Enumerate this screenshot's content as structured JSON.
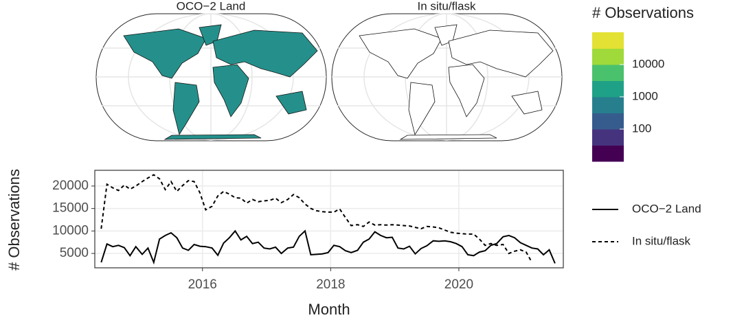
{
  "maps": [
    {
      "title": "OCO−2 Land"
    },
    {
      "title": "In situ/flask"
    }
  ],
  "colorbar": {
    "title": "# Observations",
    "log": true,
    "lim": [
      10,
      100000
    ],
    "ticks": [
      100,
      1000,
      10000
    ],
    "colors": [
      "#440154",
      "#46337e",
      "#365c8d",
      "#277f8e",
      "#1fa187",
      "#4ac16d",
      "#9fda3a",
      "#e3e134"
    ]
  },
  "chart_data": {
    "type": "line",
    "xlabel": "Month",
    "ylabel": "# Observations",
    "grid": true,
    "xlim": [
      2014.32,
      2021.63
    ],
    "xticks": [
      2016,
      2018,
      2020
    ],
    "ylim": [
      1800,
      23500
    ],
    "yticks": [
      5000,
      10000,
      15000,
      20000
    ],
    "x": [
      2014.42,
      2014.51,
      2014.6,
      2014.69,
      2014.78,
      2014.87,
      2014.96,
      2015.06,
      2015.15,
      2015.24,
      2015.33,
      2015.42,
      2015.51,
      2015.6,
      2015.69,
      2015.78,
      2015.87,
      2015.96,
      2016.05,
      2016.15,
      2016.24,
      2016.33,
      2016.42,
      2016.51,
      2016.6,
      2016.69,
      2016.78,
      2016.87,
      2016.96,
      2017.05,
      2017.14,
      2017.23,
      2017.33,
      2017.42,
      2017.51,
      2017.6,
      2017.69,
      2017.78,
      2017.87,
      2017.96,
      2018.05,
      2018.14,
      2018.23,
      2018.32,
      2018.42,
      2018.51,
      2018.6,
      2018.69,
      2018.78,
      2018.87,
      2018.96,
      2019.05,
      2019.14,
      2019.23,
      2019.32,
      2019.41,
      2019.5,
      2019.6,
      2019.69,
      2019.78,
      2019.87,
      2019.96,
      2020.05,
      2020.14,
      2020.23,
      2020.32,
      2020.41,
      2020.5,
      2020.59,
      2020.69,
      2020.78,
      2020.87,
      2020.96,
      2021.05,
      2021.14,
      2021.23,
      2021.32,
      2021.41,
      2021.5
    ],
    "series": [
      {
        "name": "OCO−2 Land",
        "color": "#000000",
        "linestyle": "solid",
        "values": [
          3000,
          7100,
          6500,
          6800,
          6300,
          4500,
          6500,
          4800,
          6200,
          3000,
          8200,
          9000,
          9600,
          8500,
          6200,
          5700,
          7000,
          6600,
          6500,
          6200,
          4600,
          7300,
          8500,
          10000,
          8000,
          8800,
          7200,
          7500,
          6200,
          6000,
          6400,
          5000,
          6200,
          6400,
          8800,
          10000,
          4700,
          4800,
          4900,
          5200,
          6800,
          6500,
          5600,
          5200,
          5700,
          7500,
          8200,
          9800,
          9000,
          8500,
          8600,
          6200,
          6000,
          6600,
          4900,
          6100,
          6700,
          7800,
          7700,
          7800,
          7600,
          7200,
          6500,
          4700,
          4500,
          5300,
          5600,
          6800,
          7200,
          8700,
          9000,
          8500,
          7400,
          6800,
          6200,
          6000,
          4700,
          5800,
          2800
        ]
      },
      {
        "name": "In situ/flask",
        "color": "#000000",
        "linestyle": "dashed",
        "values": [
          10500,
          20400,
          19600,
          19000,
          20200,
          19300,
          20000,
          21000,
          21800,
          22500,
          21600,
          19200,
          21000,
          18800,
          20100,
          21200,
          21000,
          18500,
          14700,
          15500,
          17800,
          18800,
          18200,
          17400,
          17300,
          16200,
          17000,
          16500,
          16700,
          16800,
          17300,
          16300,
          17000,
          18100,
          17400,
          16000,
          15000,
          14500,
          14300,
          14200,
          14200,
          14900,
          13000,
          11200,
          11400,
          11000,
          12000,
          11300,
          11400,
          11300,
          11400,
          11300,
          11200,
          11100,
          10800,
          10500,
          11000,
          10900,
          10700,
          10200,
          9700,
          9500,
          9400,
          9300,
          9300,
          8200,
          6800,
          7200,
          6800,
          7000,
          5000,
          5500,
          5800,
          5300,
          3000,
          null,
          null,
          null,
          null
        ]
      }
    ]
  }
}
